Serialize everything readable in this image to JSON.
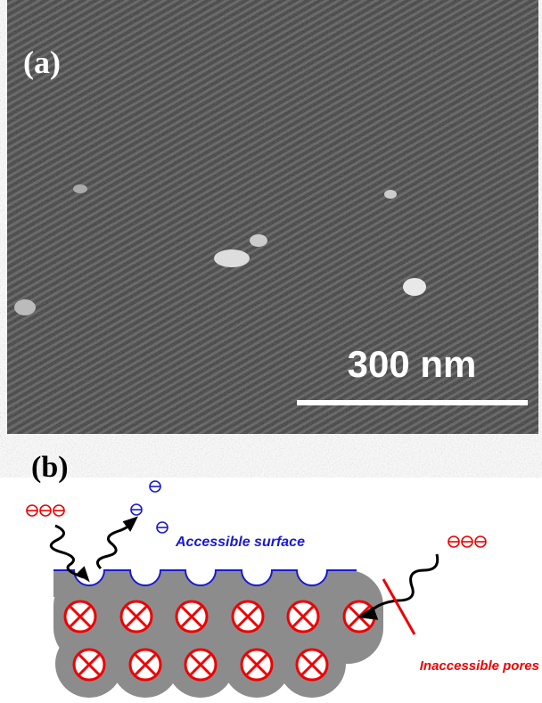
{
  "panel_a": {
    "label": "(a)",
    "scale_bar": "300 nm"
  },
  "panel_b": {
    "label": "(b)",
    "accessible_label": "Accessible surface",
    "inaccessible_label": "Inaccessible pores"
  }
}
